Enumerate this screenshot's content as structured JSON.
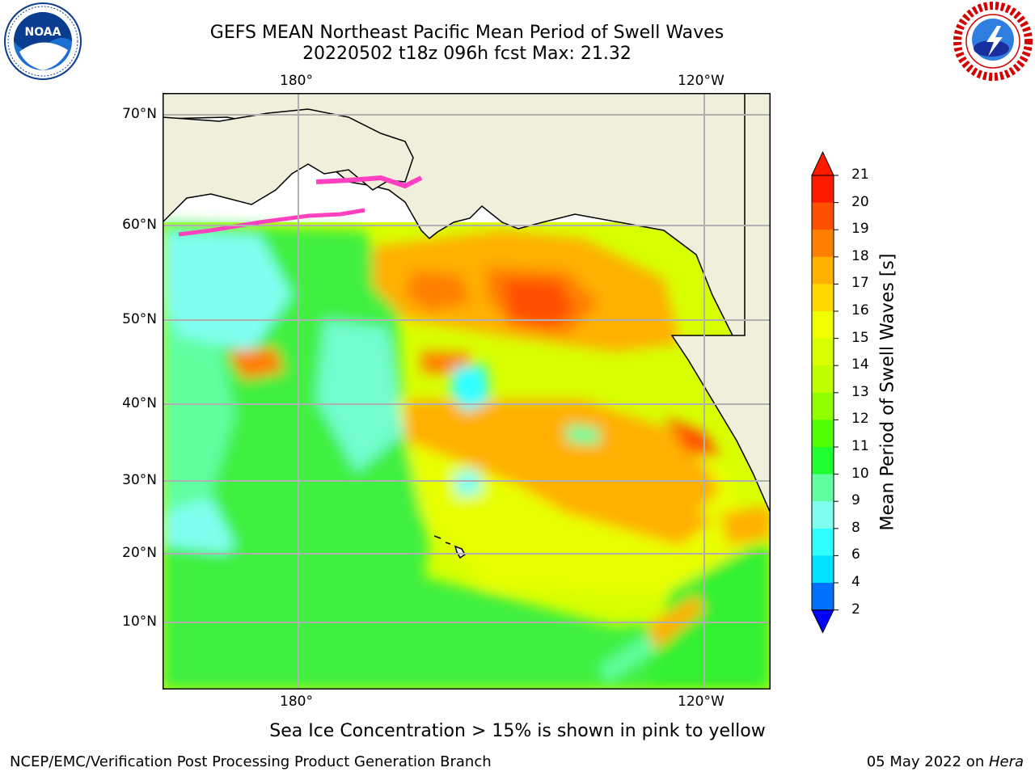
{
  "title": {
    "line1": "GEFS MEAN Northeast Pacific Mean Period of Swell Waves",
    "line2": "20220502 t18z 096h fcst   Max: 21.32"
  },
  "axes": {
    "lon_top": [
      "180°",
      "120°W"
    ],
    "lon_bottom": [
      "180°",
      "120°W"
    ],
    "lat": [
      "70°N",
      "60°N",
      "50°N",
      "40°N",
      "30°N",
      "20°N",
      "10°N"
    ]
  },
  "colorbar": {
    "label": "Mean Period of Swell Waves [s]",
    "ticks": [
      "21",
      "20",
      "19",
      "18",
      "17",
      "16",
      "15",
      "14",
      "13",
      "12",
      "11",
      "10",
      "9",
      "8",
      "6",
      "4",
      "2"
    ],
    "colors": [
      "#ff1a00",
      "#ff5000",
      "#ff8000",
      "#ffb000",
      "#ffd800",
      "#f0ff00",
      "#d8ff00",
      "#c0ff00",
      "#90ff00",
      "#50ff00",
      "#20ff30",
      "#60ffa0",
      "#80fff0",
      "#30ffff",
      "#00e0ff",
      "#0070ff"
    ],
    "under_color": "#0000ff",
    "over_color": "#ff1a00"
  },
  "note": "Sea Ice Concentration > 15% is shown in pink to yellow",
  "footer": {
    "left": "NCEP/EMC/Verification Post Processing Product Generation Branch",
    "right_prefix": "05 May 2022 on ",
    "right_host": "Hera"
  },
  "logos": {
    "left": "noaa-logo",
    "right": "national-weather-service-logo"
  }
}
